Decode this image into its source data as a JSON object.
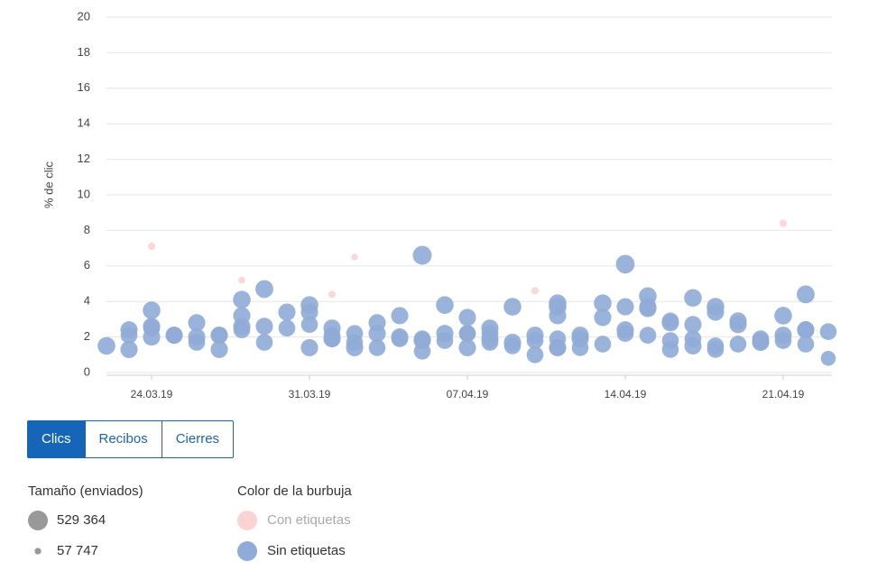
{
  "chart_data": {
    "type": "bubble",
    "ylabel": "% de clic",
    "ylim": [
      0,
      20
    ],
    "yticks": [
      0,
      2,
      4,
      6,
      8,
      10,
      12,
      14,
      16,
      18,
      20
    ],
    "grid": true,
    "xlim": [
      "22.03.19",
      "23.04.19"
    ],
    "xticks": [
      "24.03.19",
      "31.03.19",
      "07.04.19",
      "14.04.19",
      "21.04.19"
    ],
    "series": [
      {
        "name": "Con etiquetas",
        "color": "#fcd3d3",
        "x": [
          "24.03.19",
          "28.03.19",
          "01.04.19",
          "02.04.19",
          "10.04.19",
          "21.04.19"
        ],
        "values": [
          7.1,
          5.2,
          4.4,
          6.5,
          4.6,
          8.4
        ],
        "sizes": [
          70000,
          65000,
          70000,
          60000,
          75000,
          75000
        ]
      },
      {
        "name": "Sin etiquetas",
        "color": "#8fabd6",
        "x": [
          "22.03.19",
          "23.03.19",
          "23.03.19",
          "23.03.19",
          "24.03.19",
          "24.03.19",
          "24.03.19",
          "24.03.19",
          "25.03.19",
          "25.03.19",
          "26.03.19",
          "26.03.19",
          "26.03.19",
          "27.03.19",
          "27.03.19",
          "27.03.19",
          "28.03.19",
          "28.03.19",
          "28.03.19",
          "28.03.19",
          "29.03.19",
          "29.03.19",
          "29.03.19",
          "30.03.19",
          "30.03.19",
          "31.03.19",
          "31.03.19",
          "31.03.19",
          "31.03.19",
          "01.04.19",
          "01.04.19",
          "01.04.19",
          "01.04.19",
          "02.04.19",
          "02.04.19",
          "02.04.19",
          "03.04.19",
          "03.04.19",
          "03.04.19",
          "04.04.19",
          "04.04.19",
          "04.04.19",
          "05.04.19",
          "05.04.19",
          "05.04.19",
          "05.04.19",
          "06.04.19",
          "06.04.19",
          "06.04.19",
          "07.04.19",
          "07.04.19",
          "07.04.19",
          "07.04.19",
          "08.04.19",
          "08.04.19",
          "08.04.19",
          "08.04.19",
          "09.04.19",
          "09.04.19",
          "09.04.19",
          "10.04.19",
          "10.04.19",
          "10.04.19",
          "11.04.19",
          "11.04.19",
          "11.04.19",
          "11.04.19",
          "11.04.19",
          "11.04.19",
          "12.04.19",
          "12.04.19",
          "12.04.19",
          "13.04.19",
          "13.04.19",
          "13.04.19",
          "14.04.19",
          "14.04.19",
          "14.04.19",
          "14.04.19",
          "15.04.19",
          "15.04.19",
          "15.04.19",
          "15.04.19",
          "16.04.19",
          "16.04.19",
          "16.04.19",
          "16.04.19",
          "17.04.19",
          "17.04.19",
          "17.04.19",
          "17.04.19",
          "18.04.19",
          "18.04.19",
          "18.04.19",
          "18.04.19",
          "19.04.19",
          "19.04.19",
          "19.04.19",
          "20.04.19",
          "20.04.19",
          "20.04.19",
          "21.04.19",
          "21.04.19",
          "21.04.19",
          "22.04.19",
          "22.04.19",
          "22.04.19",
          "22.04.19",
          "23.04.19",
          "23.04.19"
        ],
        "values": [
          1.5,
          1.3,
          2.1,
          2.4,
          3.5,
          2.6,
          2.5,
          2.0,
          2.1,
          2.1,
          2.0,
          2.8,
          1.7,
          2.1,
          1.3,
          2.1,
          4.1,
          2.6,
          3.2,
          2.4,
          4.7,
          1.7,
          2.6,
          3.4,
          2.5,
          3.4,
          2.7,
          1.4,
          3.8,
          2.1,
          2.5,
          1.9,
          1.9,
          1.7,
          1.4,
          2.2,
          1.4,
          2.8,
          2.2,
          1.9,
          2.0,
          3.2,
          1.2,
          6.6,
          1.9,
          1.8,
          1.8,
          2.2,
          3.8,
          2.2,
          3.1,
          2.2,
          1.4,
          2.2,
          1.9,
          1.7,
          2.5,
          1.5,
          1.7,
          3.7,
          1.8,
          2.1,
          1.0,
          1.4,
          3.7,
          3.2,
          1.4,
          3.9,
          1.9,
          2.1,
          1.4,
          1.9,
          1.6,
          3.1,
          3.9,
          3.7,
          2.2,
          6.1,
          2.4,
          2.1,
          4.3,
          3.7,
          3.6,
          2.9,
          1.3,
          2.8,
          1.8,
          2.7,
          4.2,
          1.9,
          1.5,
          1.5,
          3.4,
          1.3,
          3.7,
          2.9,
          1.6,
          2.7,
          1.8,
          1.7,
          1.9,
          2.1,
          3.2,
          1.8,
          2.4,
          1.6,
          2.4,
          4.4,
          2.3,
          0.8
        ],
        "sizes": [
          420000,
          400000,
          380000,
          400000,
          420000,
          400000,
          380000,
          400000,
          380000,
          400000,
          400000,
          400000,
          380000,
          400000,
          400000,
          380000,
          420000,
          400000,
          400000,
          380000,
          430000,
          380000,
          400000,
          400000,
          380000,
          400000,
          380000,
          400000,
          420000,
          380000,
          400000,
          380000,
          400000,
          380000,
          400000,
          380000,
          380000,
          400000,
          400000,
          380000,
          400000,
          400000,
          380000,
          480000,
          380000,
          400000,
          380000,
          400000,
          420000,
          380000,
          400000,
          380000,
          400000,
          380000,
          400000,
          380000,
          400000,
          380000,
          400000,
          420000,
          380000,
          400000,
          380000,
          400000,
          420000,
          400000,
          380000,
          420000,
          380000,
          400000,
          380000,
          400000,
          380000,
          400000,
          420000,
          400000,
          380000,
          470000,
          400000,
          380000,
          420000,
          400000,
          400000,
          380000,
          380000,
          400000,
          380000,
          400000,
          420000,
          380000,
          400000,
          380000,
          400000,
          380000,
          420000,
          400000,
          380000,
          400000,
          380000,
          400000,
          380000,
          400000,
          420000,
          380000,
          400000,
          380000,
          400000,
          430000,
          380000,
          300000
        ]
      }
    ]
  },
  "tabs": [
    {
      "label": "Clics",
      "active": true
    },
    {
      "label": "Recibos",
      "active": false
    },
    {
      "label": "Cierres",
      "active": false
    }
  ],
  "size_legend": {
    "title": "Tamaño (enviados)",
    "color": "#999999",
    "items": [
      {
        "value": 529364,
        "label": "529 364"
      },
      {
        "value": 57747,
        "label": "57 747"
      }
    ]
  },
  "color_legend": {
    "title": "Color de la burbuja"
  }
}
